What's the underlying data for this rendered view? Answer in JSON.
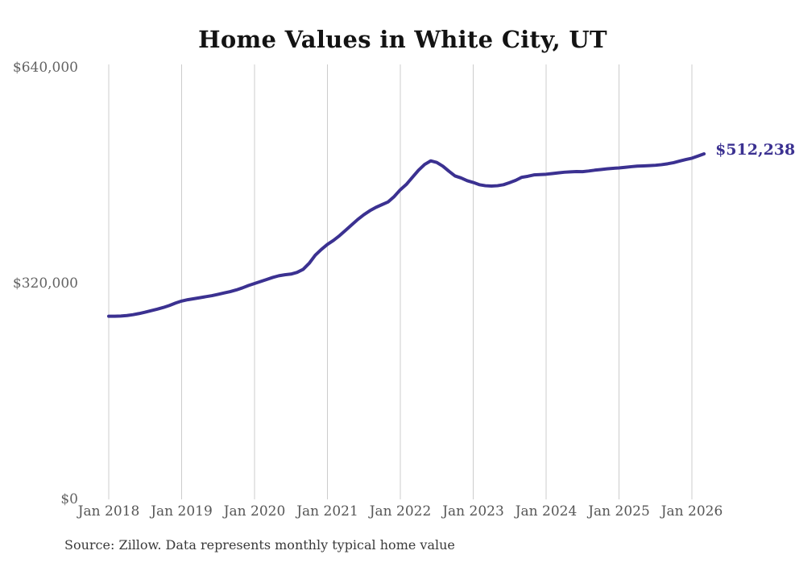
{
  "title": "Home Values in White City, UT",
  "source_note": "Source: Zillow. Data represents monthly typical home value",
  "colors": {
    "line": "#3b3191",
    "end_label": "#3b3191",
    "grid": "#cccccc",
    "y_axis_text": "#636363",
    "x_axis_text": "#565656",
    "title_text": "#131313",
    "source_text": "#3a3a3a",
    "background": "#ffffff"
  },
  "chart_data": {
    "type": "line",
    "title": "Home Values in White City, UT",
    "xlabel": "",
    "ylabel": "",
    "ylim": [
      0,
      640000
    ],
    "y_tick_values": [
      0,
      320000,
      640000
    ],
    "y_tick_labels": [
      "$0",
      "$320,000",
      "$640,000"
    ],
    "x_tick_labels": [
      "Jan 2018",
      "Jan 2019",
      "Jan 2020",
      "Jan 2021",
      "Jan 2022",
      "Jan 2023",
      "Jan 2024",
      "Jan 2025",
      "Jan 2026"
    ],
    "grid": "vertical-only",
    "legend": "none",
    "end_annotation": {
      "text": "$512,238",
      "value": 512238
    },
    "series": [
      {
        "name": "Monthly typical home value",
        "start_month": "2018-01",
        "months_per_point": 1,
        "values": [
          271500,
          271500,
          271800,
          272500,
          273800,
          275500,
          277500,
          279800,
          282000,
          284500,
          287500,
          291000,
          294000,
          296000,
          297500,
          299000,
          300500,
          302000,
          304000,
          306000,
          308000,
          310500,
          313500,
          317000,
          320000,
          323000,
          326000,
          329000,
          331500,
          333000,
          334000,
          336500,
          341000,
          350000,
          362000,
          370500,
          378000,
          384000,
          391000,
          399000,
          407000,
          415000,
          422000,
          428000,
          433000,
          437000,
          441000,
          449000,
          459000,
          467000,
          477500,
          488000,
          496500,
          501800,
          499500,
          494000,
          486500,
          479500,
          476500,
          472500,
          469800,
          466500,
          465000,
          464500,
          465000,
          466500,
          469500,
          473000,
          477500,
          479000,
          481000,
          481500,
          482000,
          483000,
          484000,
          485000,
          485500,
          486000,
          485800,
          486800,
          488000,
          489000,
          490000,
          490800,
          491300,
          492200,
          493200,
          494000,
          494400,
          494800,
          495300,
          496200,
          497500,
          499200,
          501500,
          503800,
          505800,
          509000,
          512238
        ]
      }
    ]
  }
}
